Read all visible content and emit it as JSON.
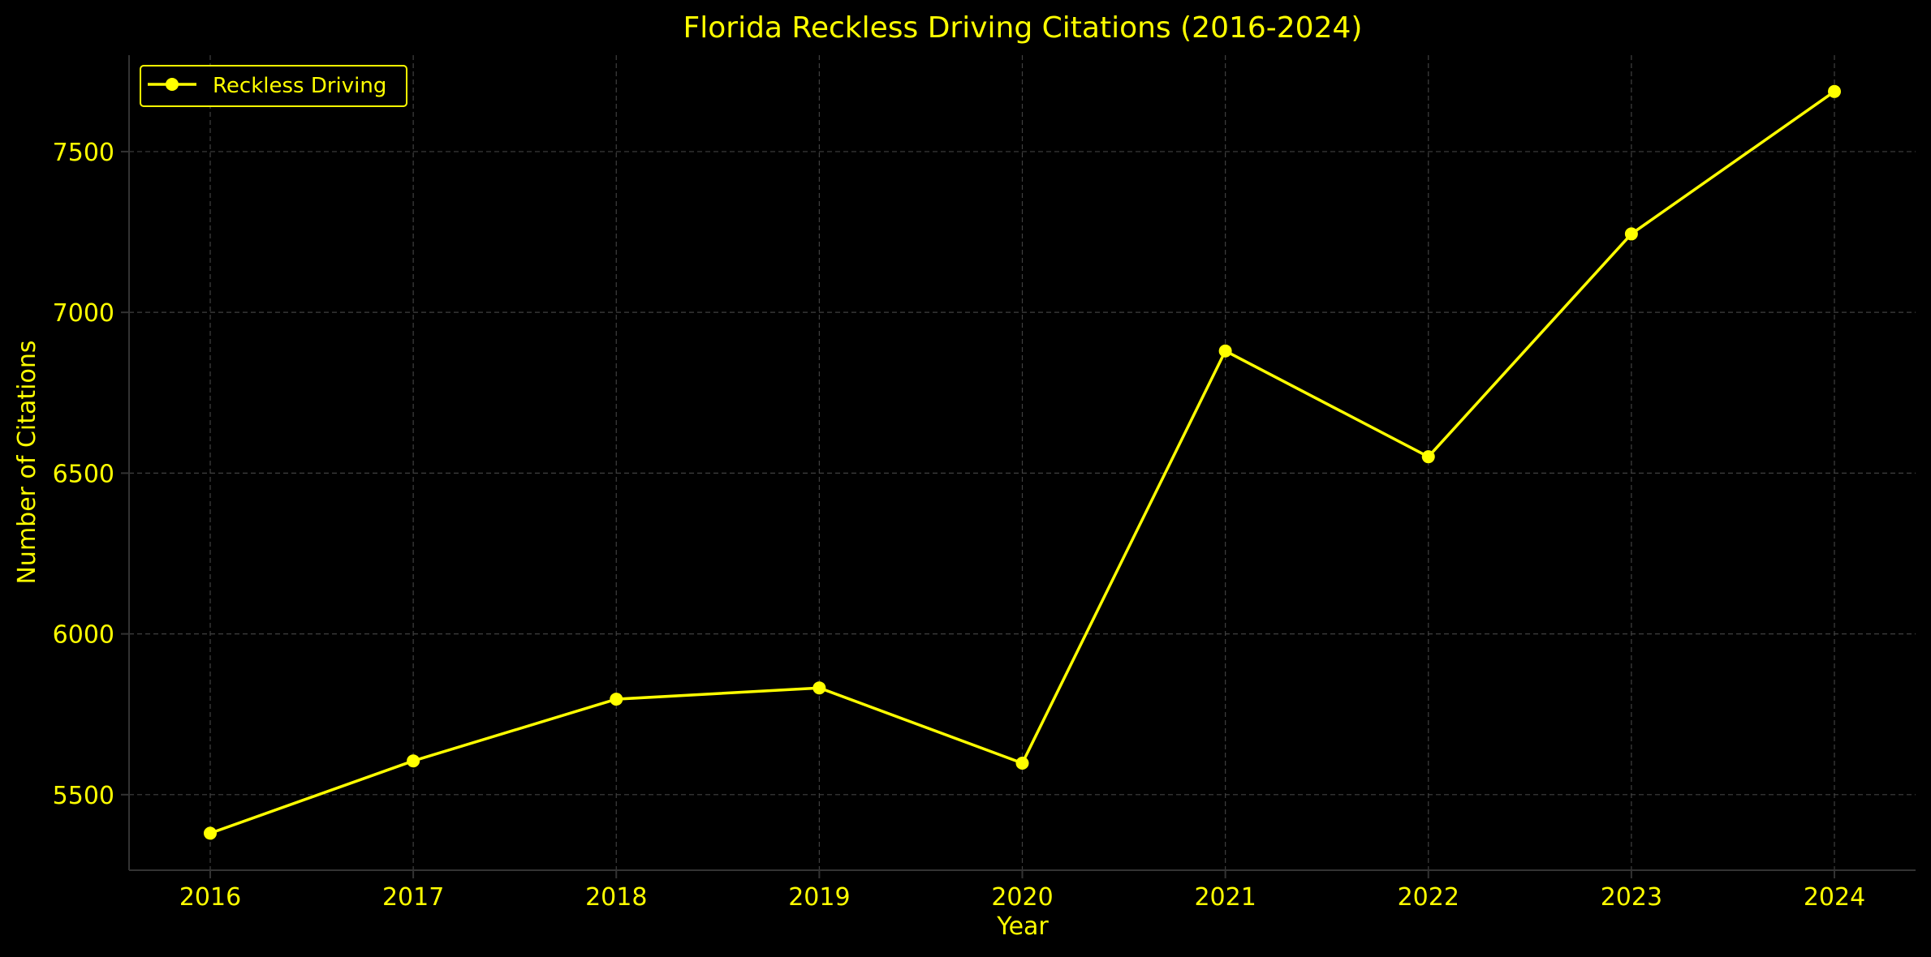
{
  "chart_data": {
    "type": "line",
    "title": "Florida Reckless Driving Citations (2016-2024)",
    "xlabel": "Year",
    "ylabel": "Number of Citations",
    "categories": [
      "2016",
      "2017",
      "2018",
      "2019",
      "2020",
      "2021",
      "2022",
      "2023",
      "2024"
    ],
    "series": [
      {
        "name": "Reckless Driving",
        "values": [
          5380,
          5605,
          5797,
          5832,
          5598,
          6880,
          6551,
          7244,
          7687
        ]
      }
    ],
    "ylim": [
      5265,
      7800
    ],
    "yticks": [
      "5500",
      "6000",
      "6500",
      "7000",
      "7500"
    ],
    "grid": true,
    "legend_position": "top-left",
    "marker": "circle",
    "colors": {
      "background": "#000000",
      "text": "#ffff00",
      "series": "#ffff00",
      "grid": "#404040",
      "axis": "#333333"
    }
  }
}
